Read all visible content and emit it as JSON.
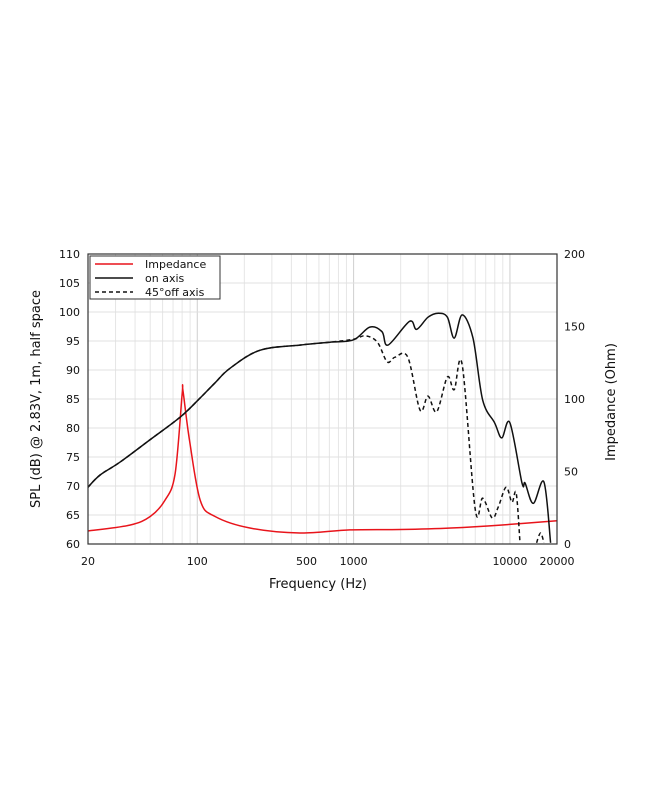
{
  "chart_data": {
    "type": "line",
    "title": "",
    "xlabel": "Frequency (Hz)",
    "ylabel": "SPL (dB) @ 2.83V, 1m, half space",
    "y2label": "Impedance (Ohm)",
    "xscale": "log",
    "xlim": [
      20,
      20000
    ],
    "ylim": [
      60,
      110
    ],
    "y2lim": [
      0,
      200
    ],
    "x_ticks": [
      20,
      100,
      500,
      1000,
      10000,
      20000
    ],
    "y_ticks": [
      60,
      65,
      70,
      75,
      80,
      85,
      90,
      95,
      100,
      105,
      110
    ],
    "y2_ticks": [
      0,
      50,
      100,
      150,
      200
    ],
    "grid": true,
    "legend_position": "top-left",
    "series": [
      {
        "name": "Impedance",
        "axis": "right",
        "color": "#e8141b",
        "style": "solid",
        "x": [
          20,
          37,
          50,
          62,
          72,
          80,
          81,
          89,
          104.6,
          130,
          217,
          452,
          945,
          1990,
          4200,
          8700,
          20000
        ],
        "y": [
          9,
          13,
          19,
          30,
          48,
          103,
          105.5,
          72,
          30,
          19,
          11,
          7.6,
          9.7,
          10,
          11,
          13,
          16
        ]
      },
      {
        "name": "on axis",
        "axis": "left",
        "color": "#111111",
        "style": "solid",
        "x": [
          20,
          23.9,
          32,
          50,
          78.7,
          104.6,
          130,
          162,
          251,
          452,
          706,
          1000,
          1270,
          1520,
          1660,
          2280,
          2530,
          2990,
          3480,
          3980,
          4400,
          4950,
          5800,
          6700,
          7980,
          8860,
          10000,
          11950,
          12500,
          14100,
          16500,
          18200
        ],
        "y": [
          69.8,
          71.9,
          74.1,
          78,
          82,
          85.2,
          87.8,
          90.3,
          93.4,
          94.3,
          94.8,
          95.2,
          97.4,
          96.6,
          94.3,
          98.4,
          97,
          99.1,
          99.8,
          99.1,
          95.5,
          99.5,
          95.5,
          84.8,
          80.9,
          78.3,
          80.9,
          70.5,
          70.5,
          67,
          70.7,
          60.2
        ]
      },
      {
        "name": "45°off axis",
        "axis": "left",
        "color": "#111111",
        "style": "dashed",
        "x": [
          20,
          23.9,
          32,
          50,
          78.7,
          104.6,
          130,
          162,
          251,
          452,
          706,
          1000,
          1190,
          1420,
          1640,
          1840,
          2220,
          2660,
          2990,
          3400,
          3980,
          4400,
          4950,
          6000,
          6700,
          7700,
          8430,
          9450,
          10300,
          10960,
          11600
        ],
        "y": [
          69.8,
          71.9,
          74.1,
          78,
          82,
          85.2,
          87.8,
          90.3,
          93.4,
          94.3,
          94.8,
          95.3,
          95.9,
          94.8,
          91.4,
          92.2,
          92.2,
          83.1,
          85.5,
          82.8,
          88.8,
          86.6,
          90.9,
          65.9,
          67.9,
          64.5,
          66.4,
          69.8,
          67.2,
          68.8,
          60.2
        ]
      },
      {
        "name": "45°off axis tail",
        "axis": "left",
        "color": "#111111",
        "style": "dashed",
        "legend": false,
        "x": [
          14800,
          15700,
          16500
        ],
        "y": [
          60.2,
          61.9,
          60.2
        ]
      }
    ]
  }
}
